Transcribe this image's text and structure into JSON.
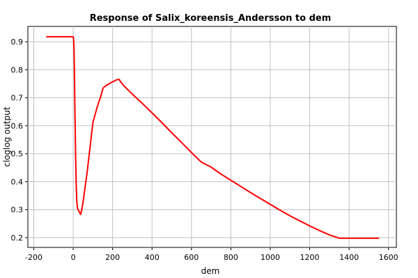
{
  "chart_data": {
    "type": "line",
    "title": "Response of Salix_koreensis_Andersson to dem",
    "xlabel": "dem",
    "ylabel": "cloglog output",
    "xlim": [
      -230,
      1640
    ],
    "ylim": [
      0.165,
      0.955
    ],
    "xticks": [
      -200,
      0,
      200,
      400,
      600,
      800,
      1000,
      1200,
      1400,
      1600
    ],
    "yticks": [
      0.2,
      0.3,
      0.4,
      0.5,
      0.6,
      0.7,
      0.8,
      0.9
    ],
    "xtick_labels": [
      "-200",
      "0",
      "200",
      "400",
      "600",
      "800",
      "1000",
      "1200",
      "1400",
      "1600"
    ],
    "ytick_labels": [
      "0.2",
      "0.3",
      "0.4",
      "0.5",
      "0.6",
      "0.7",
      "0.8",
      "0.9"
    ],
    "grid": true,
    "line_color": "#ff0000",
    "series": [
      {
        "x": [
          -135,
          -100,
          -50,
          0,
          2,
          4,
          6,
          8,
          10,
          12,
          15,
          18,
          22,
          26,
          30,
          34,
          38,
          45,
          52,
          60,
          70,
          80,
          90,
          100,
          110,
          120,
          130,
          140,
          150,
          155,
          160,
          170,
          180,
          190,
          200,
          210,
          220,
          230,
          235,
          240,
          250,
          260,
          270,
          300,
          350,
          400,
          450,
          500,
          550,
          600,
          650,
          700,
          750,
          800,
          850,
          900,
          950,
          1000,
          1050,
          1100,
          1150,
          1200,
          1250,
          1300,
          1350,
          1400,
          1410,
          1450,
          1500,
          1550
        ],
        "y": [
          0.918,
          0.918,
          0.918,
          0.918,
          0.912,
          0.88,
          0.8,
          0.7,
          0.6,
          0.5,
          0.4,
          0.33,
          0.305,
          0.298,
          0.293,
          0.288,
          0.283,
          0.305,
          0.338,
          0.378,
          0.43,
          0.49,
          0.55,
          0.612,
          0.637,
          0.662,
          0.685,
          0.705,
          0.732,
          0.737,
          0.74,
          0.745,
          0.749,
          0.753,
          0.757,
          0.76,
          0.764,
          0.766,
          0.764,
          0.757,
          0.749,
          0.741,
          0.734,
          0.713,
          0.68,
          0.646,
          0.611,
          0.575,
          0.54,
          0.504,
          0.47,
          0.452,
          0.427,
          0.405,
          0.383,
          0.361,
          0.34,
          0.319,
          0.298,
          0.278,
          0.26,
          0.242,
          0.225,
          0.21,
          0.198,
          0.198,
          0.198,
          0.198,
          0.198,
          0.198
        ]
      }
    ]
  }
}
